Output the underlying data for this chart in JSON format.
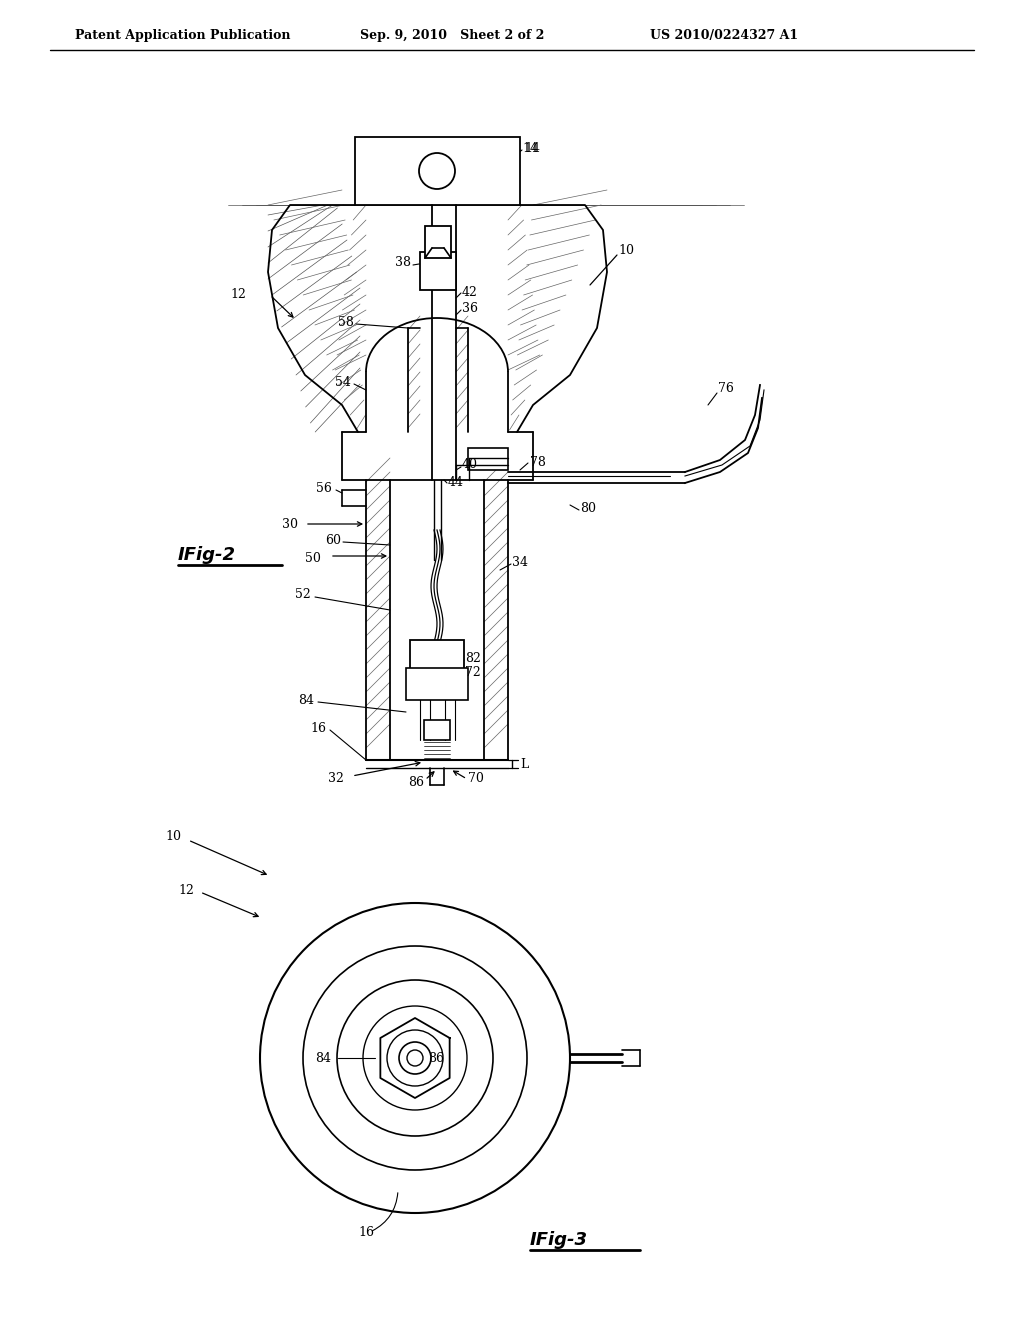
{
  "bg_color": "#ffffff",
  "header_left": "Patent Application Publication",
  "header_mid": "Sep. 9, 2010   Sheet 2 of 2",
  "header_right": "US 2010/0224327 A1",
  "fig2_label": "IFig-2",
  "fig3_label": "IFig-3",
  "line_color": "#000000"
}
